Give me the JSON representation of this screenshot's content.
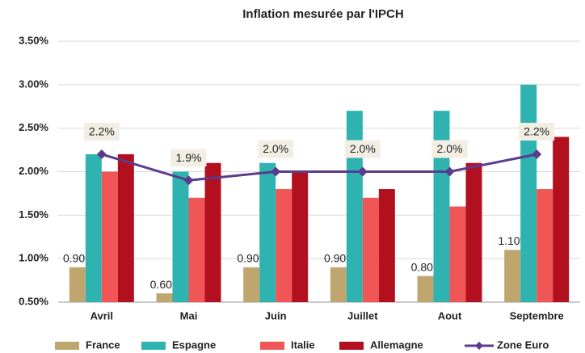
{
  "chart_data": {
    "type": "bar",
    "title": "Inflation mesurée par l'IPCH",
    "categories": [
      "Avril",
      "Mai",
      "Juin",
      "Juillet",
      "Aout",
      "Septembre"
    ],
    "ylim": [
      0.5,
      3.5
    ],
    "yticks": [
      {
        "value": 0.5,
        "label": "0.50%"
      },
      {
        "value": 1.0,
        "label": "1.00%"
      },
      {
        "value": 1.5,
        "label": "1.50%"
      },
      {
        "value": 2.0,
        "label": "2.00%"
      },
      {
        "value": 2.5,
        "label": "2.50%"
      },
      {
        "value": 3.0,
        "label": "3.00%"
      },
      {
        "value": 3.5,
        "label": "3.50%"
      }
    ],
    "grid": true,
    "legend": "bottom",
    "series": [
      {
        "name": "France",
        "color": "#bfa66f",
        "values": [
          0.9,
          0.6,
          0.9,
          0.9,
          0.8,
          1.1
        ],
        "value_labels": [
          "0.90%",
          "0.60%",
          "0.90%",
          "0.90%",
          "0.80%",
          "1.10%"
        ]
      },
      {
        "name": "Espagne",
        "color": "#2fb3b1",
        "values": [
          2.2,
          2.0,
          2.1,
          2.7,
          2.7,
          3.0
        ]
      },
      {
        "name": "Italie",
        "color": "#f05656",
        "values": [
          2.0,
          1.7,
          1.8,
          1.7,
          1.6,
          1.8
        ]
      },
      {
        "name": "Allemagne",
        "color": "#b3101f",
        "values": [
          2.2,
          2.1,
          2.0,
          1.8,
          2.1,
          2.4
        ]
      },
      {
        "name": "Zone Euro",
        "color": "#5c3b8e",
        "type": "line",
        "values": [
          2.2,
          1.9,
          2.0,
          2.0,
          2.0,
          2.2
        ],
        "value_labels": [
          "2.2%",
          "1.9%",
          "2.0%",
          "2.0%",
          "2.0%",
          "2.2%"
        ]
      }
    ]
  }
}
